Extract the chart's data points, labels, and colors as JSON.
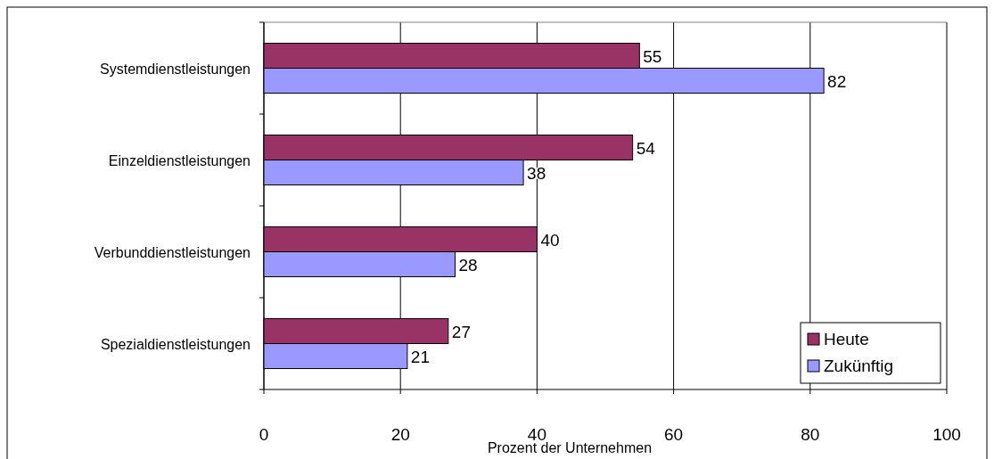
{
  "chart_data": {
    "type": "bar",
    "orientation": "horizontal",
    "xlabel": "Prozent der Unternehmen",
    "categories": [
      "Systemdienstleistungen",
      "Einzeldienstleistungen",
      "Verbunddienstleistungen",
      "Spezialdienstleistungen"
    ],
    "series": [
      {
        "name": "Heute",
        "color": "#993366",
        "values": [
          55,
          54,
          40,
          27
        ]
      },
      {
        "name": "Zukünftig",
        "color": "#9999ff",
        "values": [
          82,
          38,
          28,
          21
        ]
      }
    ],
    "xlim": [
      0,
      100
    ],
    "xticks": [
      0,
      20,
      40,
      60,
      80,
      100
    ],
    "grid": "x",
    "legend": "bottom right",
    "data_labels": true
  }
}
